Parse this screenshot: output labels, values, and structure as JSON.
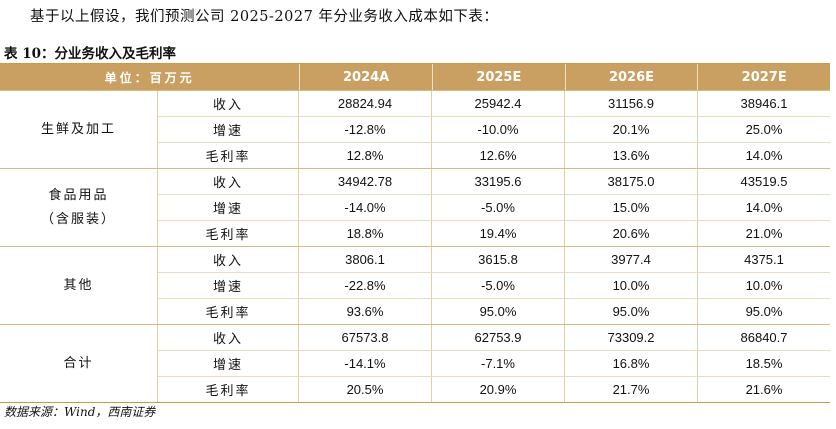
{
  "intro": "基于以上假设，我们预测公司 2025-2027 年分业务收入成本如下表：",
  "caption": "表 10：分业务收入及毛利率",
  "header": {
    "unit": "单位：百万元",
    "years": [
      "2024A",
      "2025E",
      "2026E",
      "2027E"
    ]
  },
  "groups": [
    {
      "name_lines": [
        "生鲜及加工"
      ],
      "rows": [
        {
          "metric": "收入",
          "values": [
            "28824.94",
            "25942.4",
            "31156.9",
            "38946.1"
          ]
        },
        {
          "metric": "增速",
          "values": [
            "-12.8%",
            "-10.0%",
            "20.1%",
            "25.0%"
          ]
        },
        {
          "metric": "毛利率",
          "values": [
            "12.8%",
            "12.6%",
            "13.6%",
            "14.0%"
          ]
        }
      ]
    },
    {
      "name_lines": [
        "食品用品",
        "（含服装）"
      ],
      "rows": [
        {
          "metric": "收入",
          "values": [
            "34942.78",
            "33195.6",
            "38175.0",
            "43519.5"
          ]
        },
        {
          "metric": "增速",
          "values": [
            "-14.0%",
            "-5.0%",
            "15.0%",
            "14.0%"
          ]
        },
        {
          "metric": "毛利率",
          "values": [
            "18.8%",
            "19.4%",
            "20.6%",
            "21.0%"
          ]
        }
      ]
    },
    {
      "name_lines": [
        "其他"
      ],
      "rows": [
        {
          "metric": "收入",
          "values": [
            "3806.1",
            "3615.8",
            "3977.4",
            "4375.1"
          ]
        },
        {
          "metric": "增速",
          "values": [
            "-22.8%",
            "-5.0%",
            "10.0%",
            "10.0%"
          ]
        },
        {
          "metric": "毛利率",
          "values": [
            "93.6%",
            "95.0%",
            "95.0%",
            "95.0%"
          ]
        }
      ]
    },
    {
      "name_lines": [
        "合计"
      ],
      "rows": [
        {
          "metric": "收入",
          "values": [
            "67573.8",
            "62753.9",
            "73309.2",
            "86840.7"
          ]
        },
        {
          "metric": "增速",
          "values": [
            "-14.1%",
            "-7.1%",
            "16.8%",
            "18.5%"
          ]
        },
        {
          "metric": "毛利率",
          "values": [
            "20.5%",
            "20.9%",
            "21.7%",
            "21.6%"
          ]
        }
      ]
    }
  ],
  "source": "数据来源：Wind，西南证券"
}
